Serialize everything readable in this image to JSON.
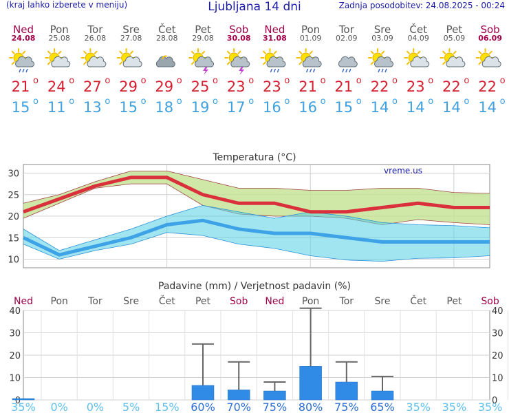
{
  "header": {
    "menu_note": "(kraj lahko izberete v meniju)",
    "title": "Ljubljana 14 dni",
    "updated": "Zadnja posodobitev: 24.08.2025 - 00:24"
  },
  "days": [
    {
      "name": "Ned",
      "date": "24.08",
      "weekend": true,
      "icon": "sun-cloud-rain-icon",
      "tmax": "21",
      "tmin": "15"
    },
    {
      "name": "Pon",
      "date": "25.08",
      "weekend": false,
      "icon": "sun-cloud-icon",
      "tmax": "24",
      "tmin": "11"
    },
    {
      "name": "Tor",
      "date": "26.08",
      "weekend": false,
      "icon": "sun-cloud-icon",
      "tmax": "27",
      "tmin": "13"
    },
    {
      "name": "Sre",
      "date": "27.08",
      "weekend": false,
      "icon": "sun-cloud-icon",
      "tmax": "29",
      "tmin": "15"
    },
    {
      "name": "Čet",
      "date": "28.08",
      "weekend": false,
      "icon": "partly-cloudy-icon",
      "tmax": "29",
      "tmin": "18"
    },
    {
      "name": "Pet",
      "date": "29.08",
      "weekend": false,
      "icon": "sun-cloud-thunder-icon",
      "tmax": "25",
      "tmin": "19"
    },
    {
      "name": "Sob",
      "date": "30.08",
      "weekend": true,
      "icon": "sun-cloud-thunder-icon",
      "tmax": "23",
      "tmin": "17"
    },
    {
      "name": "Ned",
      "date": "31.08",
      "weekend": true,
      "icon": "sun-cloud-rain-icon",
      "tmax": "23",
      "tmin": "16"
    },
    {
      "name": "Pon",
      "date": "01.09",
      "weekend": false,
      "icon": "sun-cloud-rain-icon",
      "tmax": "21",
      "tmin": "16"
    },
    {
      "name": "Tor",
      "date": "02.09",
      "weekend": false,
      "icon": "cloud-rain-icon",
      "tmax": "21",
      "tmin": "15"
    },
    {
      "name": "Sre",
      "date": "03.09",
      "weekend": false,
      "icon": "sun-cloud-rain-icon",
      "tmax": "22",
      "tmin": "14"
    },
    {
      "name": "Čet",
      "date": "04.09",
      "weekend": false,
      "icon": "sun-cloud-icon",
      "tmax": "23",
      "tmin": "14"
    },
    {
      "name": "Pet",
      "date": "05.09",
      "weekend": false,
      "icon": "sun-cloud-icon",
      "tmax": "22",
      "tmin": "14"
    },
    {
      "name": "Sob",
      "date": "06.09",
      "weekend": true,
      "icon": "sun-cloud-icon",
      "tmax": "22",
      "tmin": "14"
    }
  ],
  "colors": {
    "weekend": "#a0004a",
    "weekday": "#555555",
    "tmax": "#d42030",
    "tmin": "#3fa0e0",
    "bar": "#2f8be6"
  },
  "chart_data": [
    {
      "type": "line",
      "title": "Temperatura (°C)",
      "watermark": "vreme.us",
      "ylim": [
        8,
        32
      ],
      "yticks": [
        10,
        15,
        20,
        25,
        30
      ],
      "x": [
        0,
        1,
        2,
        3,
        4,
        5,
        6,
        7,
        8,
        9,
        10,
        11,
        12,
        13
      ],
      "grid": true,
      "series": [
        {
          "values": [
            21,
            24,
            27,
            29,
            29,
            25,
            23,
            23,
            21,
            21,
            22,
            23,
            22,
            22
          ]
        },
        {
          "values": [
            15,
            11,
            13,
            15,
            18,
            19,
            17,
            16,
            16,
            15,
            14,
            14,
            14,
            14
          ]
        }
      ],
      "bands": [
        {
          "upper": [
            23,
            25,
            28,
            30.5,
            30.5,
            28.5,
            26.5,
            26.5,
            26,
            26,
            26.5,
            26.5,
            25.5,
            25.3
          ],
          "lower": [
            19.5,
            23,
            26.5,
            27.5,
            27.5,
            22.5,
            20.5,
            20,
            20,
            19.5,
            18,
            19.2,
            18.5,
            18
          ]
        },
        {
          "upper": [
            17,
            12,
            14.5,
            17,
            20,
            22.5,
            21,
            19.5,
            21,
            20,
            18.5,
            18,
            17.8,
            17.3
          ],
          "lower": [
            13.5,
            10,
            12,
            13.5,
            16.2,
            15.5,
            13.5,
            12.5,
            10.8,
            9.8,
            9.5,
            10.2,
            10.3,
            10.8
          ]
        }
      ]
    },
    {
      "type": "bar",
      "title": "Padavine (mm) / Verjetnost padavin (%)",
      "categories": [
        "Ned",
        "Pon",
        "Tor",
        "Sre",
        "Čet",
        "Pet",
        "Sob",
        "Ned",
        "Pon",
        "Tor",
        "Sre",
        "Čet",
        "Pet",
        "Sob"
      ],
      "ylim": [
        0,
        40
      ],
      "yticks": [
        0,
        10,
        20,
        30,
        40
      ],
      "values": [
        0.3,
        0,
        0,
        0,
        0,
        6.5,
        4.5,
        4,
        15,
        8,
        4,
        0,
        0,
        0
      ],
      "error_max": [
        0,
        0,
        0,
        0,
        0,
        25,
        17,
        8,
        41,
        17,
        10.5,
        0,
        0,
        0
      ],
      "probability": [
        "35%",
        "0%",
        "0%",
        "5%",
        "15%",
        "60%",
        "70%",
        "75%",
        "80%",
        "75%",
        "65%",
        "35%",
        "35%",
        "35%"
      ]
    }
  ]
}
